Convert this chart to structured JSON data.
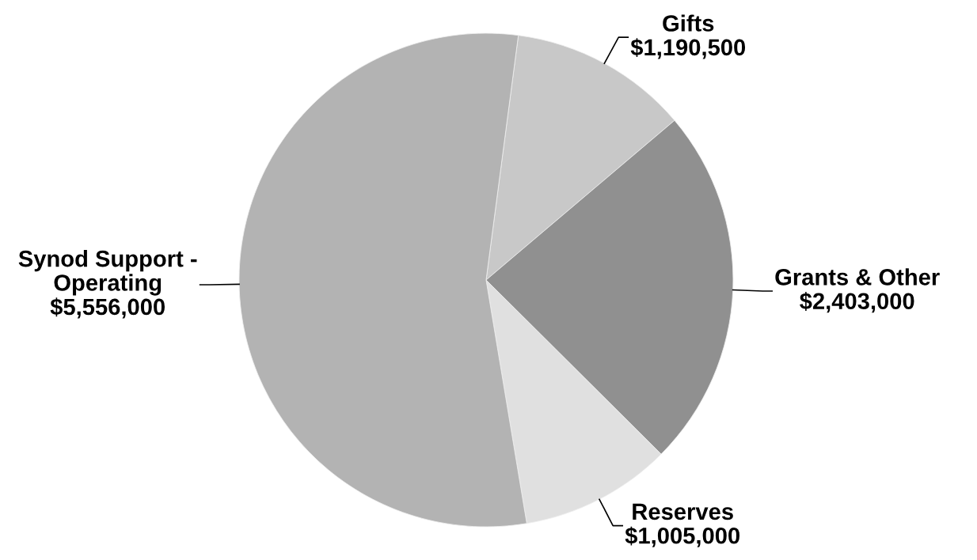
{
  "chart_data": {
    "type": "pie",
    "categories": [
      "Gifts",
      "Grants & Other",
      "Reserves",
      "Synod Support -\nOperating"
    ],
    "values": [
      1190500,
      2403000,
      1005000,
      5556000
    ],
    "value_labels": [
      "$1,190,500",
      "$2,403,000",
      "$1,005,000",
      "$5,556,000"
    ],
    "colors": [
      "#c8c8c8",
      "#909090",
      "#e0e0e0",
      "#b3b3b3"
    ]
  }
}
